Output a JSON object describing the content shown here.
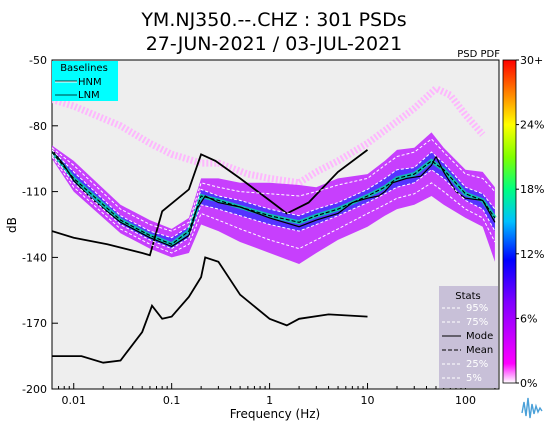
{
  "chart_data": {
    "type": "heatmap",
    "title_line1": "YM.NJ350.--.CHZ : 301 PSDs",
    "title_line2": "27-JUN-2021 / 03-JUL-2021",
    "pdf_label": "PSD PDF",
    "xlabel": "Frequency (Hz)",
    "ylabel": "dB",
    "xscale": "log",
    "xlim": [
      0.006,
      220
    ],
    "ylim": [
      -200,
      -50
    ],
    "xticks": [
      {
        "value": 0.01,
        "label": "0.01"
      },
      {
        "value": 0.1,
        "label": "0.1"
      },
      {
        "value": 1,
        "label": "1"
      },
      {
        "value": 10,
        "label": "10"
      },
      {
        "value": 100,
        "label": "100"
      }
    ],
    "yticks": [
      {
        "value": -50,
        "label": "-50"
      },
      {
        "value": -80,
        "label": "-80"
      },
      {
        "value": -110,
        "label": "-110"
      },
      {
        "value": -140,
        "label": "-140"
      },
      {
        "value": -170,
        "label": "-170"
      },
      {
        "value": -200,
        "label": "-200"
      }
    ],
    "colorbar": {
      "colors": [
        "#ffffff",
        "#ff00ff",
        "#0000ff",
        "#00ffff",
        "#00ff00",
        "#ffff00",
        "#ff8000",
        "#ff0000"
      ],
      "ticks": [
        {
          "value": 0,
          "label": "0%"
        },
        {
          "value": 6,
          "label": "6%"
        },
        {
          "value": 12,
          "label": "12%"
        },
        {
          "value": 18,
          "label": "18%"
        },
        {
          "value": 24,
          "label": "24%"
        },
        {
          "value": 30,
          "label": "30+"
        }
      ],
      "max": 30
    },
    "baselines_legend": {
      "title": "Baselines",
      "items": [
        "HNM",
        "LNM"
      ],
      "background": "#00ffff"
    },
    "stats_legend": {
      "title": "Stats",
      "items": [
        {
          "label": "95%",
          "style": "dashed-white"
        },
        {
          "label": "75%",
          "style": "dashed-white"
        },
        {
          "label": "Mode",
          "style": "solid-black"
        },
        {
          "label": "Mean",
          "style": "dashed-black"
        },
        {
          "label": "25%",
          "style": "dashed-white"
        },
        {
          "label": "5%",
          "style": "dashed-white"
        }
      ],
      "background": "#c8c0d8"
    },
    "series": [
      {
        "name": "HNM",
        "x": [
          0.006,
          0.01,
          0.022,
          0.05,
          0.06,
          0.08,
          0.15,
          0.2,
          0.28,
          0.5,
          1.0,
          1.5,
          2.5,
          5.0,
          10.0
        ],
        "y": [
          -128,
          -131,
          -134,
          -138,
          -139,
          -119,
          -109,
          -93,
          -96,
          -104,
          -114,
          -120,
          -115,
          -101,
          -91
        ]
      },
      {
        "name": "LNM",
        "x": [
          0.006,
          0.012,
          0.02,
          0.03,
          0.05,
          0.063,
          0.08,
          0.1,
          0.15,
          0.2,
          0.22,
          0.3,
          0.5,
          1.0,
          1.5,
          2.0,
          4.0,
          10.0
        ],
        "y": [
          -185,
          -185,
          -188,
          -187,
          -174,
          -162,
          -168,
          -167,
          -158,
          -149,
          -140,
          -142,
          -157,
          -168,
          -171,
          -168,
          -166,
          -167
        ]
      },
      {
        "name": "Mode",
        "x": [
          0.006,
          0.008,
          0.01,
          0.015,
          0.03,
          0.06,
          0.1,
          0.15,
          0.18,
          0.22,
          0.3,
          0.5,
          1.0,
          2.0,
          3.0,
          5.0,
          7.0,
          10.0,
          13.0,
          15.0,
          18.0,
          25.0,
          35.0,
          45.0,
          50.0,
          60.0,
          80.0,
          100.0,
          150.0,
          200.0
        ],
        "y": [
          -91,
          -98,
          -105,
          -113,
          -124,
          -131,
          -135,
          -130,
          -118,
          -112,
          -115,
          -117,
          -122,
          -126,
          -123,
          -120,
          -115,
          -113,
          -112,
          -110,
          -106,
          -104,
          -103,
          -98,
          -94,
          -101,
          -110,
          -113,
          -114,
          -124
        ]
      },
      {
        "name": "Mean",
        "x": [
          0.006,
          0.01,
          0.03,
          0.06,
          0.1,
          0.15,
          0.2,
          0.3,
          0.5,
          1.0,
          2.0,
          3.0,
          5.0,
          10.0,
          15.0,
          20.0,
          30.0,
          45.0,
          60.0,
          100.0,
          150.0,
          200.0
        ],
        "y": [
          -92,
          -104,
          -123,
          -130,
          -134,
          -128,
          -112,
          -114,
          -117,
          -121,
          -124,
          -121,
          -118,
          -112,
          -108,
          -104,
          -102,
          -96,
          -100,
          -111,
          -114,
          -122
        ]
      },
      {
        "name": "95%",
        "x": [
          0.006,
          0.01,
          0.03,
          0.06,
          0.1,
          0.15,
          0.2,
          0.3,
          0.5,
          1.0,
          2.0,
          3.0,
          5.0,
          10.0,
          15.0,
          20.0,
          30.0,
          45.0,
          60.0,
          100.0,
          150.0,
          200.0
        ],
        "y": [
          -90,
          -98,
          -118,
          -125,
          -128,
          -124,
          -106,
          -108,
          -110,
          -111,
          -112,
          -110,
          -107,
          -104,
          -98,
          -94,
          -92,
          -86,
          -92,
          -102,
          -104,
          -110
        ]
      },
      {
        "name": "75%",
        "x": [
          0.006,
          0.01,
          0.03,
          0.06,
          0.1,
          0.15,
          0.2,
          0.3,
          0.5,
          1.0,
          2.0,
          3.0,
          5.0,
          10.0,
          15.0,
          20.0,
          30.0,
          45.0,
          60.0,
          100.0,
          150.0,
          200.0
        ],
        "y": [
          -91,
          -101,
          -121,
          -128,
          -131,
          -126,
          -109,
          -112,
          -114,
          -118,
          -121,
          -118,
          -115,
          -109,
          -104,
          -100,
          -99,
          -92,
          -97,
          -108,
          -111,
          -118
        ]
      },
      {
        "name": "25%",
        "x": [
          0.006,
          0.01,
          0.03,
          0.06,
          0.1,
          0.15,
          0.2,
          0.3,
          0.5,
          1.0,
          2.0,
          3.0,
          5.0,
          10.0,
          15.0,
          20.0,
          30.0,
          45.0,
          60.0,
          100.0,
          150.0,
          200.0
        ],
        "y": [
          -93,
          -106,
          -125,
          -132,
          -136,
          -131,
          -116,
          -118,
          -121,
          -125,
          -128,
          -125,
          -121,
          -115,
          -111,
          -108,
          -106,
          -100,
          -104,
          -114,
          -118,
          -128
        ]
      },
      {
        "name": "5%",
        "x": [
          0.006,
          0.01,
          0.03,
          0.06,
          0.1,
          0.15,
          0.2,
          0.3,
          0.5,
          1.0,
          2.0,
          3.0,
          5.0,
          10.0,
          15.0,
          20.0,
          30.0,
          45.0,
          60.0,
          100.0,
          150.0,
          200.0
        ],
        "y": [
          -94,
          -108,
          -127,
          -134,
          -138,
          -134,
          -120,
          -123,
          -127,
          -132,
          -136,
          -132,
          -127,
          -120,
          -116,
          -113,
          -111,
          -106,
          -110,
          -118,
          -122,
          -133
        ]
      }
    ],
    "density_band": {
      "x": [
        0.006,
        0.01,
        0.03,
        0.06,
        0.1,
        0.15,
        0.2,
        0.3,
        0.5,
        1.0,
        2.0,
        3.0,
        5.0,
        10.0,
        15.0,
        20.0,
        30.0,
        45.0,
        60.0,
        100.0,
        150.0,
        200.0
      ],
      "upper": [
        -89,
        -96,
        -116,
        -123,
        -127,
        -122,
        -104,
        -104,
        -106,
        -106,
        -107,
        -108,
        -104,
        -102,
        -96,
        -91,
        -90,
        -83,
        -90,
        -100,
        -101,
        -108
      ],
      "lower": [
        -95,
        -110,
        -129,
        -136,
        -140,
        -138,
        -125,
        -128,
        -133,
        -138,
        -143,
        -138,
        -132,
        -126,
        -121,
        -118,
        -116,
        -112,
        -116,
        -122,
        -126,
        -142
      ]
    },
    "sparse_band": {
      "x": [
        0.006,
        0.01,
        0.03,
        0.06,
        0.1,
        0.2,
        0.3,
        0.6,
        1.0,
        2.0,
        3.0,
        5.0,
        10.0,
        20.0,
        30.0,
        50.0,
        70.0,
        100.0,
        150.0
      ],
      "y": [
        -68,
        -71,
        -80,
        -88,
        -93,
        -97,
        -97,
        -102,
        -104,
        -106,
        -101,
        -96,
        -88,
        -78,
        -72,
        -63,
        -66,
        -75,
        -84
      ]
    }
  }
}
